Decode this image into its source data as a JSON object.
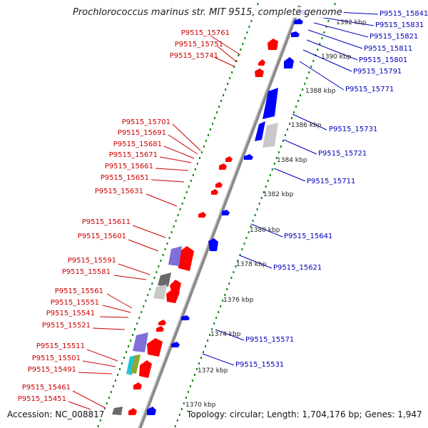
{
  "title": "Prochlorococcus marinus str. MIT 9515, complete genome",
  "footer": {
    "accession": "Accession: NC_008817",
    "topology": "Topology: circular; Length: 1,704,176 bp; Genes: 1,947"
  },
  "colors": {
    "reverse_label": "#cc0000",
    "forward_label": "#0000bb",
    "reverse_gene": "#ff0000",
    "forward_gene": "#0000ff",
    "tick": "#118811",
    "backbone": "#888888"
  },
  "kbp_ticks": [
    "1370 kbp",
    "1372 kbp",
    "1374 kbp",
    "1376 kbp",
    "1378 kbp",
    "1380 kbp",
    "1382 kbp",
    "1384 kbp",
    "1386 kbp",
    "1388 kbp",
    "1390 kbp",
    "1392 kbp"
  ],
  "reverse_labels": [
    "P9515_15761",
    "P9515_15751",
    "P9515_15741",
    "P9515_15701",
    "P9515_15691",
    "P9515_15681",
    "P9515_15671",
    "P9515_15661",
    "P9515_15651",
    "P9515_15631",
    "P9515_15611",
    "P9515_15601",
    "P9515_15591",
    "P9515_15581",
    "P9515_15561",
    "P9515_15551",
    "P9515_15541",
    "P9515_15521",
    "P9515_15511",
    "P9515_15501",
    "P9515_15491",
    "P9515_15461",
    "P9515_15451"
  ],
  "forward_labels": [
    "P9515_15841",
    "P9515_15831",
    "P9515_15821",
    "P9515_15811",
    "P9515_15801",
    "P9515_15791",
    "P9515_15771",
    "P9515_15731",
    "P9515_15721",
    "P9515_15711",
    "P9515_15641",
    "P9515_15621",
    "P9515_15571",
    "P9515_15531"
  ]
}
